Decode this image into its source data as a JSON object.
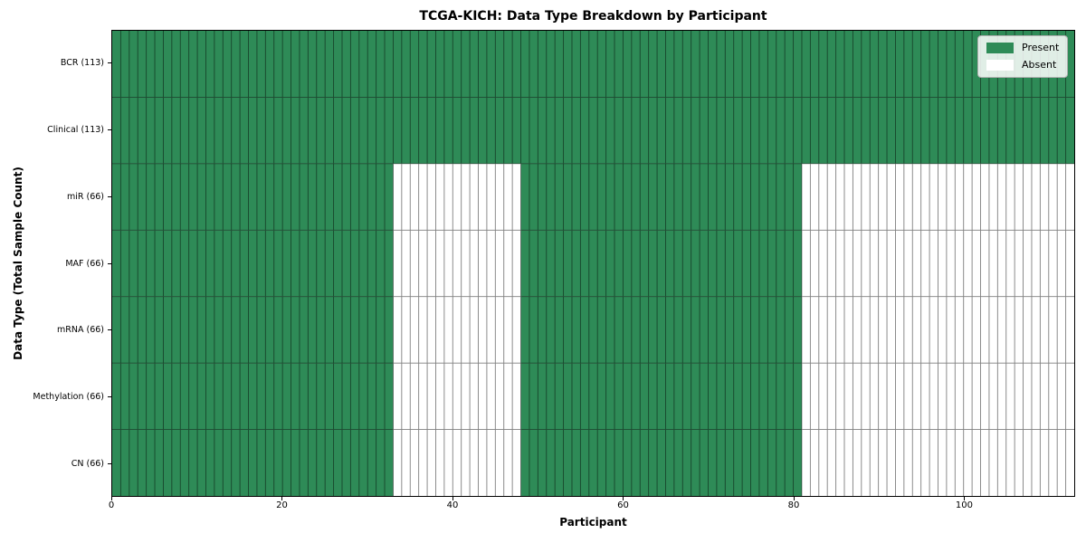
{
  "chart_data": {
    "type": "heatmap",
    "title": "TCGA-KICH: Data Type Breakdown by Participant",
    "xlabel": "Participant",
    "ylabel": "Data Type (Total Sample Count)",
    "n_participants": 113,
    "x_ticks": [
      0,
      20,
      40,
      60,
      80,
      100
    ],
    "rows": [
      {
        "label": "BCR (113)",
        "data_type": "BCR",
        "total_samples": 113,
        "present_ranges": [
          [
            0,
            113
          ]
        ]
      },
      {
        "label": "Clinical (113)",
        "data_type": "Clinical",
        "total_samples": 113,
        "present_ranges": [
          [
            0,
            113
          ]
        ]
      },
      {
        "label": "miR (66)",
        "data_type": "miR",
        "total_samples": 66,
        "present_ranges": [
          [
            0,
            33
          ],
          [
            48,
            81
          ]
        ]
      },
      {
        "label": "MAF (66)",
        "data_type": "MAF",
        "total_samples": 66,
        "present_ranges": [
          [
            0,
            33
          ],
          [
            48,
            81
          ]
        ]
      },
      {
        "label": "mRNA (66)",
        "data_type": "mRNA",
        "total_samples": 66,
        "present_ranges": [
          [
            0,
            33
          ],
          [
            48,
            81
          ]
        ]
      },
      {
        "label": "Methylation (66)",
        "data_type": "Methylation",
        "total_samples": 66,
        "present_ranges": [
          [
            0,
            33
          ],
          [
            48,
            81
          ]
        ]
      },
      {
        "label": "CN (66)",
        "data_type": "CN",
        "total_samples": 66,
        "present_ranges": [
          [
            0,
            33
          ],
          [
            48,
            81
          ]
        ]
      }
    ],
    "legend": [
      {
        "label": "Present",
        "color": "#2e8b57"
      },
      {
        "label": "Absent",
        "color": "#ffffff"
      }
    ],
    "legend_position": "upper right",
    "colors": {
      "present": "#2e8b57",
      "absent": "#ffffff",
      "cell_grid_line": "rgba(0,0,0,0.5)",
      "spine": "#000000"
    },
    "xlim": [
      0,
      113
    ],
    "grid": "per-cell"
  }
}
